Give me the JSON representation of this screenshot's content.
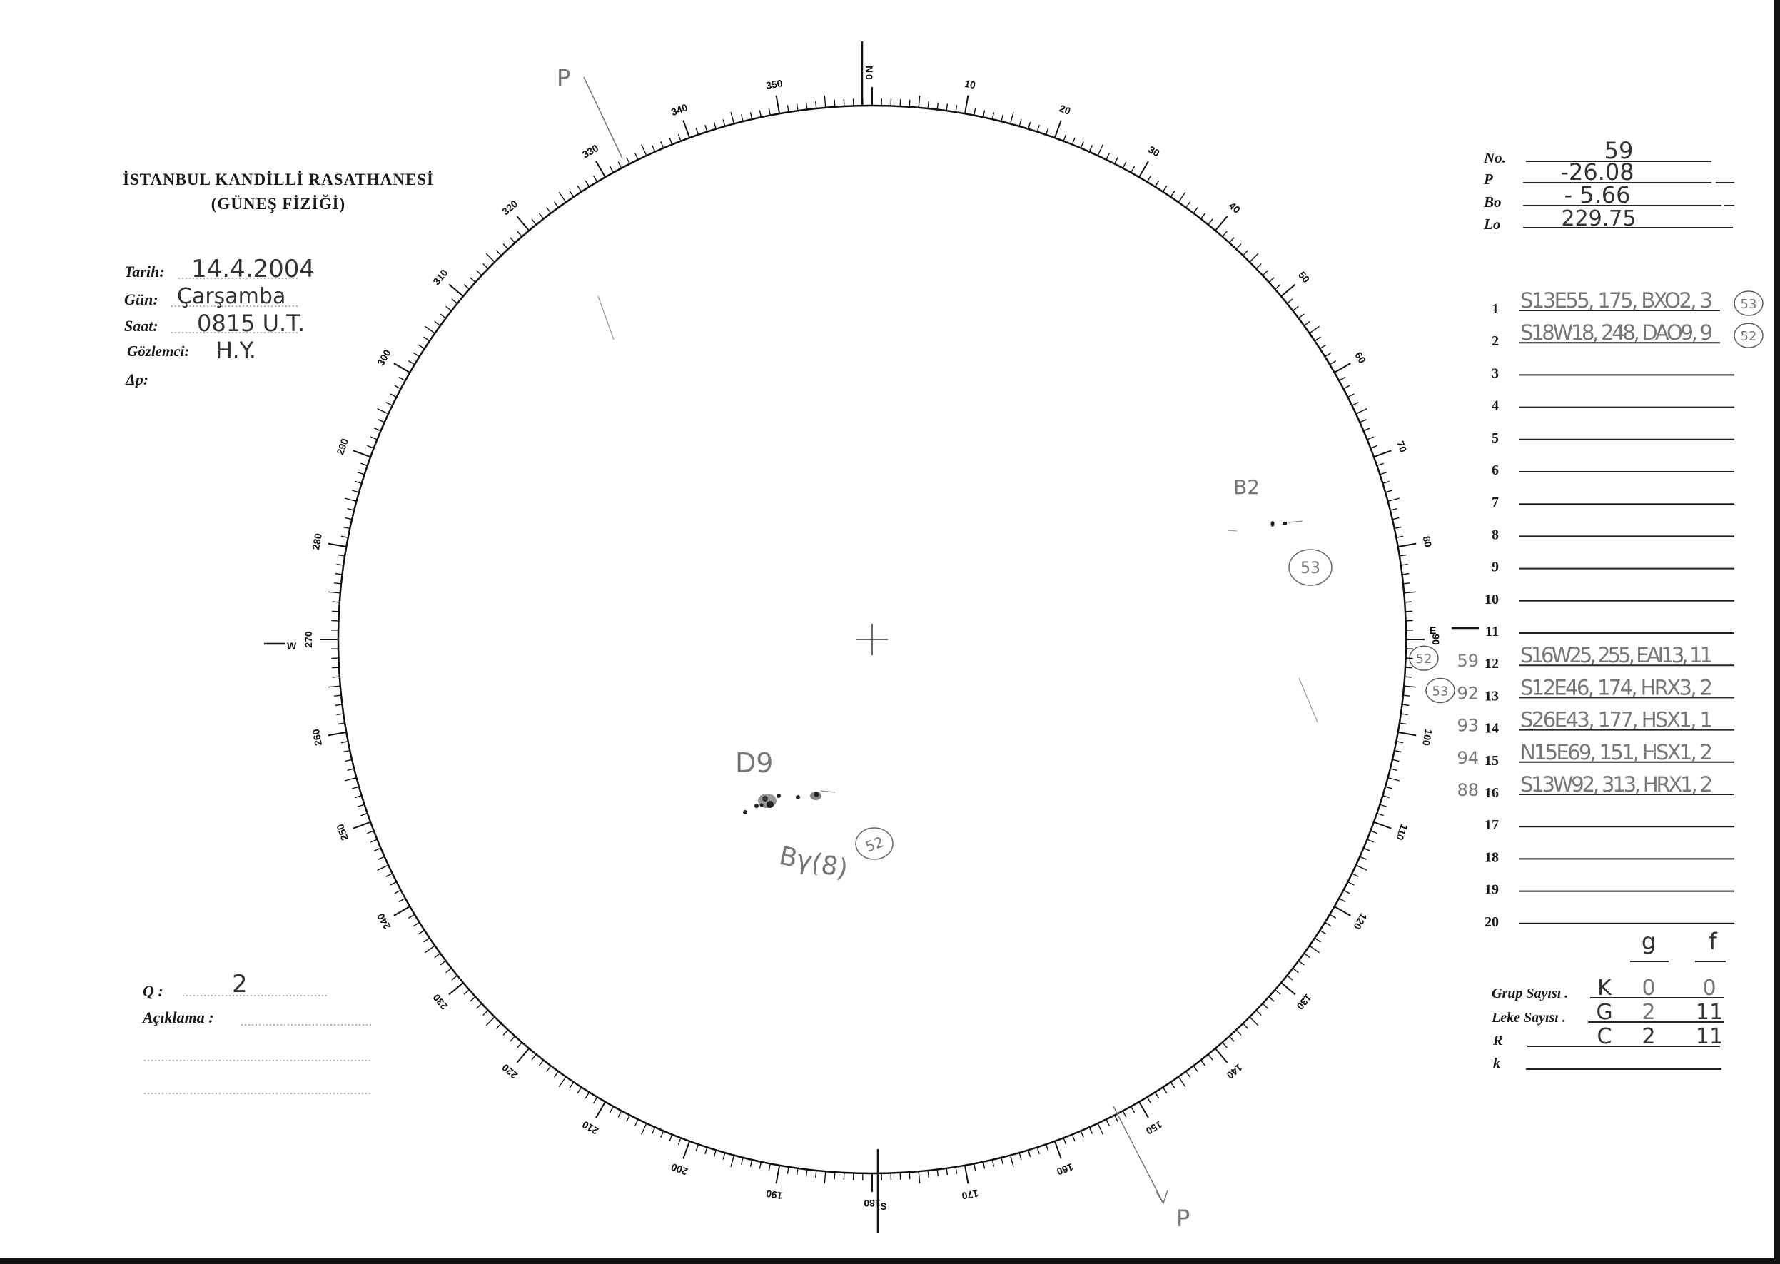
{
  "header": {
    "title": "İSTANBUL KANDİLLİ RASATHANESİ",
    "subtitle": "(GÜNEŞ FİZİĞİ)"
  },
  "observation": {
    "date_label": "Tarih:",
    "date_value": "14.4.2004",
    "day_label": "Gün:",
    "day_value": "Çarşamba",
    "time_label": "Saat:",
    "time_value": "0815 U.T.",
    "observer_label": "Gözlemci:",
    "observer_value": "H.Y.",
    "delta_p_label": "Δp:",
    "delta_p_value": ""
  },
  "remarks": {
    "q_label": "Q :",
    "q_value": "2",
    "description_label": "Açıklama :"
  },
  "parameters": {
    "no_label": "No.",
    "no_value": "59",
    "p_label": "P",
    "p_value": "-26.08",
    "bo_label": "Bo",
    "bo_value": "- 5.66",
    "lo_label": "Lo",
    "lo_value": "229.75"
  },
  "groups": [
    {
      "n": "1",
      "entry": "S13E55, 175, BXO2, 3",
      "circled": "53",
      "note": ""
    },
    {
      "n": "2",
      "entry": "S18W18, 248, DAO9, 9",
      "circled": "52",
      "note": ""
    },
    {
      "n": "3",
      "entry": "",
      "circled": "",
      "note": ""
    },
    {
      "n": "4",
      "entry": "",
      "circled": "",
      "note": ""
    },
    {
      "n": "5",
      "entry": "",
      "circled": "",
      "note": ""
    },
    {
      "n": "6",
      "entry": "",
      "circled": "",
      "note": ""
    },
    {
      "n": "7",
      "entry": "",
      "circled": "",
      "note": ""
    },
    {
      "n": "8",
      "entry": "",
      "circled": "",
      "note": ""
    },
    {
      "n": "9",
      "entry": "",
      "circled": "",
      "note": ""
    },
    {
      "n": "10",
      "entry": "",
      "circled": "",
      "note": ""
    },
    {
      "n": "11",
      "entry": "",
      "circled": "",
      "note": ""
    },
    {
      "n": "12",
      "entry": "S16W25, 255, EAI13, 11",
      "circled": "52",
      "note": "59"
    },
    {
      "n": "13",
      "entry": "S12E46, 174, HRX3, 2",
      "circled": "53",
      "note": "92"
    },
    {
      "n": "14",
      "entry": "S26E43, 177, HSX1, 1",
      "circled": "",
      "note": "93"
    },
    {
      "n": "15",
      "entry": "N15E69, 151, HSX1, 2",
      "circled": "",
      "note": "94"
    },
    {
      "n": "16",
      "entry": "S13W92, 313, HRX1, 2",
      "circled": "",
      "note": "88"
    },
    {
      "n": "17",
      "entry": "",
      "circled": "",
      "note": ""
    },
    {
      "n": "18",
      "entry": "",
      "circled": "",
      "note": ""
    },
    {
      "n": "19",
      "entry": "",
      "circled": "",
      "note": ""
    },
    {
      "n": "20",
      "entry": "",
      "circled": "",
      "note": ""
    }
  ],
  "counts": {
    "col_g": "g",
    "col_f": "f",
    "group_count_label": "Grup Sayısı .",
    "group_count": [
      "K",
      "0",
      "0"
    ],
    "spot_count_label": "Leke Sayısı .",
    "spot_count": [
      "G",
      "2",
      "11"
    ],
    "r_label": "R",
    "r_values": [
      "C",
      "2",
      "11"
    ],
    "k_label": "k"
  },
  "dial": {
    "labels": [
      "0",
      "10",
      "20",
      "30",
      "40",
      "50",
      "60",
      "70",
      "80",
      "90",
      "100",
      "110",
      "120",
      "130",
      "140",
      "150",
      "160",
      "170",
      "180",
      "190",
      "200",
      "210",
      "220",
      "230",
      "240",
      "250",
      "260",
      "270",
      "280",
      "290",
      "300",
      "310",
      "320",
      "330",
      "340",
      "350"
    ],
    "north": "N",
    "south": "S",
    "east": "E",
    "west": "W"
  },
  "drawing": {
    "group_d_label": "D9",
    "group_d_class": "Bγ(8)",
    "group_d_circled": "52",
    "group_b_label": "B2",
    "group_b_circled": "53",
    "axis_label_top": "P",
    "axis_label_bottom": "P"
  }
}
